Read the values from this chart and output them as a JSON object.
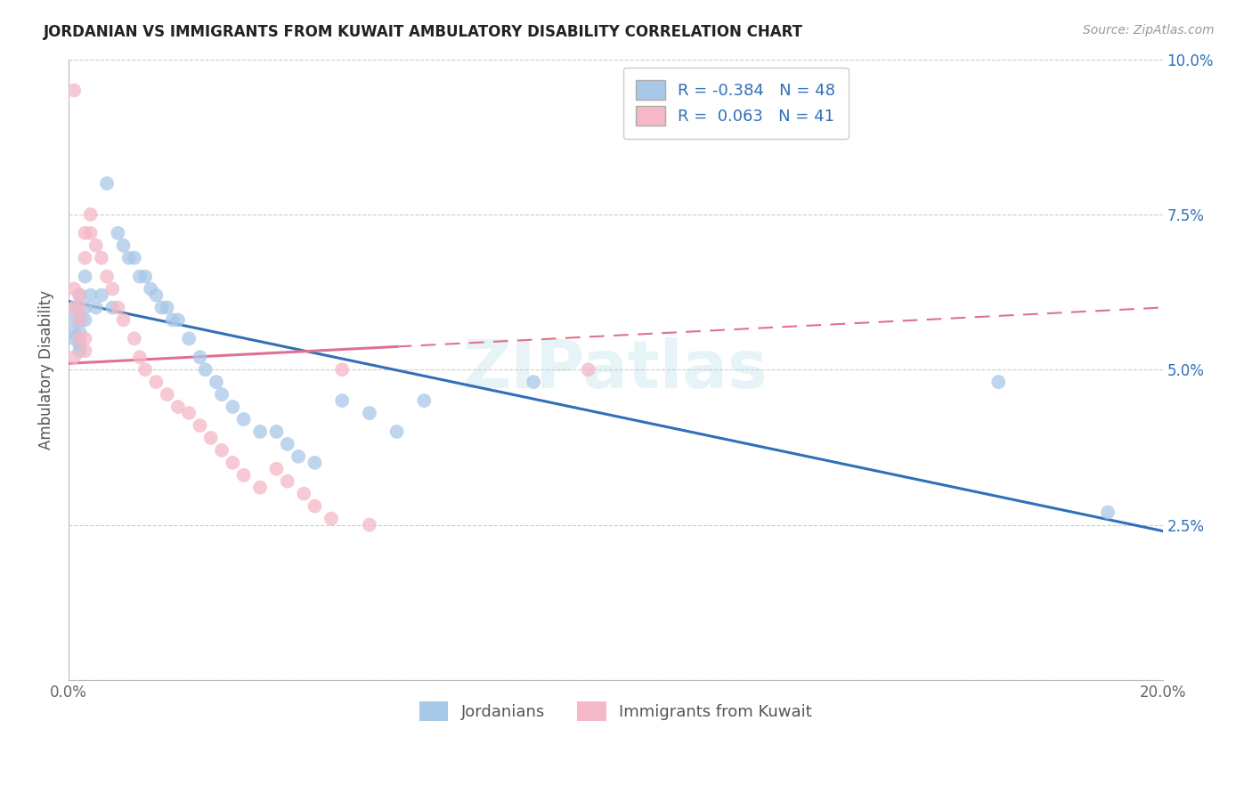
{
  "title": "JORDANIAN VS IMMIGRANTS FROM KUWAIT AMBULATORY DISABILITY CORRELATION CHART",
  "source": "Source: ZipAtlas.com",
  "ylabel": "Ambulatory Disability",
  "xlim": [
    0.0,
    0.2
  ],
  "ylim": [
    0.0,
    0.1
  ],
  "xticks": [
    0.0,
    0.05,
    0.1,
    0.15,
    0.2
  ],
  "xtick_labels": [
    "0.0%",
    "",
    "",
    "",
    "20.0%"
  ],
  "yticks": [
    0.0,
    0.025,
    0.05,
    0.075,
    0.1
  ],
  "ytick_labels_right": [
    "",
    "2.5%",
    "5.0%",
    "7.5%",
    "10.0%"
  ],
  "legend_r_blue": "-0.384",
  "legend_n_blue": "48",
  "legend_r_pink": "0.063",
  "legend_n_pink": "41",
  "legend_label_blue": "Jordanians",
  "legend_label_pink": "Immigrants from Kuwait",
  "blue_color": "#a8c8e8",
  "pink_color": "#f4b8c8",
  "blue_line_color": "#3070b8",
  "pink_line_color": "#e07090",
  "watermark": "ZIPatlas",
  "blue_trend_x0": 0.0,
  "blue_trend_y0": 0.061,
  "blue_trend_x1": 0.2,
  "blue_trend_y1": 0.024,
  "pink_trend_x0": 0.0,
  "pink_trend_y0": 0.051,
  "pink_trend_x1": 0.2,
  "pink_trend_y1": 0.06,
  "blue_scatter_x": [
    0.001,
    0.001,
    0.001,
    0.001,
    0.002,
    0.002,
    0.002,
    0.002,
    0.002,
    0.003,
    0.003,
    0.003,
    0.004,
    0.005,
    0.006,
    0.007,
    0.008,
    0.009,
    0.01,
    0.011,
    0.012,
    0.013,
    0.014,
    0.015,
    0.016,
    0.017,
    0.018,
    0.019,
    0.02,
    0.022,
    0.024,
    0.025,
    0.027,
    0.028,
    0.03,
    0.032,
    0.035,
    0.038,
    0.04,
    0.042,
    0.045,
    0.05,
    0.055,
    0.06,
    0.065,
    0.085,
    0.17,
    0.19
  ],
  "blue_scatter_y": [
    0.06,
    0.058,
    0.056,
    0.055,
    0.062,
    0.058,
    0.056,
    0.054,
    0.053,
    0.065,
    0.06,
    0.058,
    0.062,
    0.06,
    0.062,
    0.08,
    0.06,
    0.072,
    0.07,
    0.068,
    0.068,
    0.065,
    0.065,
    0.063,
    0.062,
    0.06,
    0.06,
    0.058,
    0.058,
    0.055,
    0.052,
    0.05,
    0.048,
    0.046,
    0.044,
    0.042,
    0.04,
    0.04,
    0.038,
    0.036,
    0.035,
    0.045,
    0.043,
    0.04,
    0.045,
    0.048,
    0.048,
    0.027
  ],
  "pink_scatter_x": [
    0.001,
    0.001,
    0.001,
    0.001,
    0.002,
    0.002,
    0.002,
    0.002,
    0.003,
    0.003,
    0.003,
    0.003,
    0.004,
    0.004,
    0.005,
    0.006,
    0.007,
    0.008,
    0.009,
    0.01,
    0.012,
    0.013,
    0.014,
    0.016,
    0.018,
    0.02,
    0.022,
    0.024,
    0.026,
    0.028,
    0.03,
    0.032,
    0.035,
    0.038,
    0.04,
    0.043,
    0.045,
    0.048,
    0.05,
    0.055,
    0.095
  ],
  "pink_scatter_y": [
    0.095,
    0.063,
    0.06,
    0.052,
    0.062,
    0.06,
    0.058,
    0.055,
    0.072,
    0.068,
    0.055,
    0.053,
    0.075,
    0.072,
    0.07,
    0.068,
    0.065,
    0.063,
    0.06,
    0.058,
    0.055,
    0.052,
    0.05,
    0.048,
    0.046,
    0.044,
    0.043,
    0.041,
    0.039,
    0.037,
    0.035,
    0.033,
    0.031,
    0.034,
    0.032,
    0.03,
    0.028,
    0.026,
    0.05,
    0.025,
    0.05
  ],
  "figsize": [
    14.06,
    8.92
  ],
  "dpi": 100
}
